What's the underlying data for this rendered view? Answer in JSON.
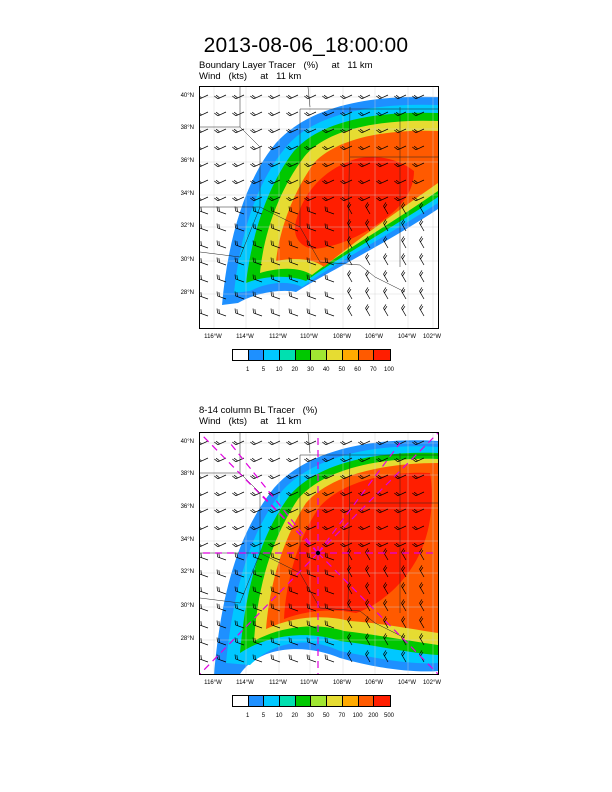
{
  "main_title": "2013-08-06_18:00:00",
  "panels": [
    {
      "title_line1": "Boundary Layer Tracer   (%)     at   11 km",
      "title_line2": "Wind   (kts)     at   11 km",
      "lat_labels": [
        "40°N",
        "38°N",
        "36°N",
        "34°N",
        "32°N",
        "30°N",
        "28°N"
      ],
      "lon_labels": [
        "116°W",
        "114°W",
        "112°W",
        "110°W",
        "108°W",
        "106°W",
        "104°W",
        "102°W"
      ],
      "legend_labels": [
        "1",
        "5",
        "10",
        "20",
        "30",
        "40",
        "50",
        "60",
        "70",
        "100"
      ]
    },
    {
      "title_line1": "8-14 column BL Tracer   (%)",
      "title_line2": "Wind   (kts)     at   11 km",
      "lat_labels": [
        "40°N",
        "38°N",
        "36°N",
        "34°N",
        "32°N",
        "30°N",
        "28°N"
      ],
      "lon_labels": [
        "116°W",
        "114°W",
        "112°W",
        "110°W",
        "108°W",
        "106°W",
        "104°W",
        "102°W"
      ],
      "legend_labels": [
        "1",
        "5",
        "10",
        "20",
        "30",
        "50",
        "70",
        "100",
        "200",
        "500"
      ]
    }
  ],
  "colors": {
    "legend": [
      "#ffffff",
      "#1e90ff",
      "#00c8ff",
      "#00e0b0",
      "#00c800",
      "#a0e632",
      "#e6dc32",
      "#ffaa00",
      "#ff5a00",
      "#ff1e00"
    ],
    "trajectory": "#e000e0",
    "trajectory_center": "#000000"
  }
}
